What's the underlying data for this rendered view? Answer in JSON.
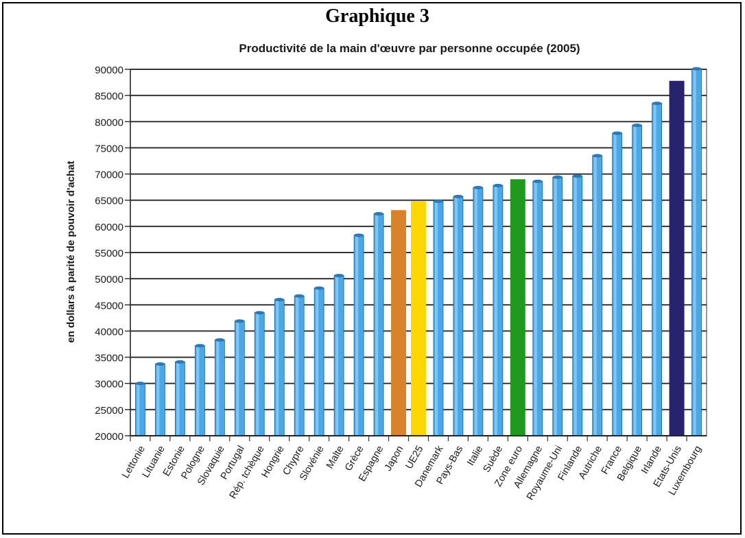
{
  "heading": "Graphique 3",
  "chart_data": {
    "type": "bar",
    "title": "Productivité de la main d'œuvre par personne occupée (2005)",
    "ylabel": "en dollars à parité de pouvoir d'achat",
    "xlabel": "",
    "ylim": [
      20000,
      90000
    ],
    "yticks": [
      "90000",
      "85000",
      "80000",
      "75000",
      "70000",
      "65000",
      "60000",
      "55000",
      "50000",
      "45000",
      "40000",
      "35000",
      "30000",
      "25000",
      "20000"
    ],
    "grid": true,
    "categories": [
      "Lettonie",
      "Lituanie",
      "Estonie",
      "Pologne",
      "Slovaquie",
      "Portugal",
      "Rép. tchèque",
      "Hongrie",
      "Chypre",
      "Slovénie",
      "Malte",
      "Grèce",
      "Espagne",
      "Japon",
      "UE25",
      "Danemark",
      "Pays-Bas",
      "Italie",
      "Suède",
      "Zone euro",
      "Allemagne",
      "Royaume-Uni",
      "Finlande",
      "Autriche",
      "France",
      "Belgique",
      "Irlande",
      "Etats-Unis",
      "Luxembourg"
    ],
    "values": [
      30000,
      33700,
      34100,
      37200,
      38300,
      41900,
      43500,
      46000,
      46700,
      48200,
      50600,
      58300,
      62400,
      63100,
      64800,
      64800,
      65700,
      67400,
      67800,
      69000,
      68600,
      69400,
      69600,
      73500,
      77800,
      79300,
      83500,
      87800,
      90100
    ],
    "colors": {
      "default": "#4aa8e8",
      "Japon": "#d9822b",
      "UE25": "#ffd700",
      "Zone euro": "#1f9a1f",
      "Etats-Unis": "#27236f"
    }
  }
}
